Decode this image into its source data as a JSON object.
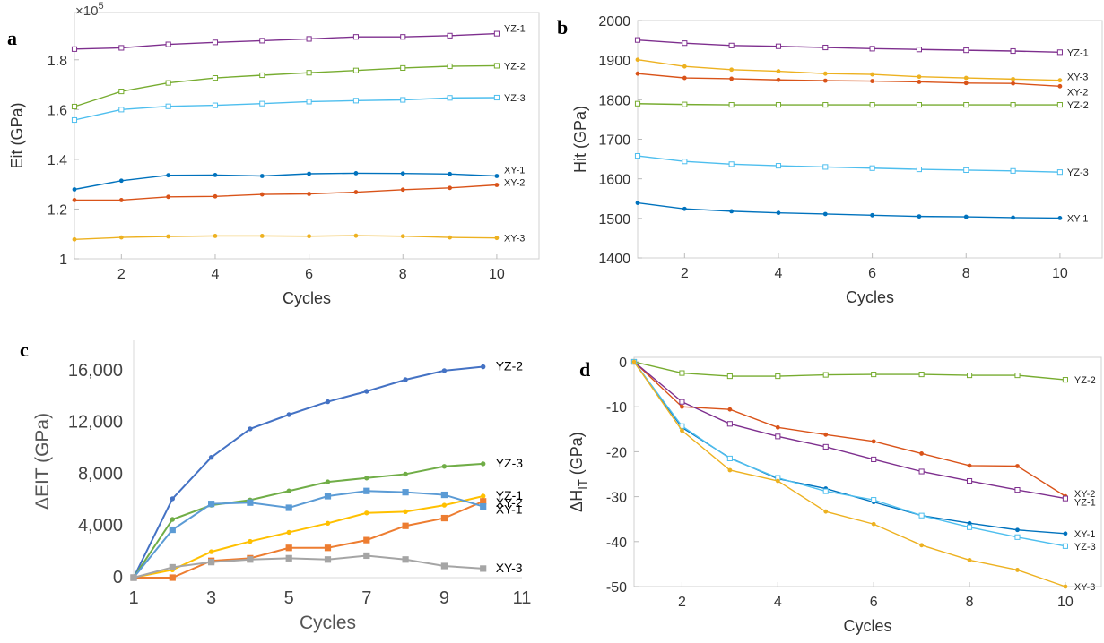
{
  "chart_data": [
    {
      "panel": "a",
      "type": "line",
      "xlabel": "Cycles",
      "ylabel": "Eit (GPa)",
      "exponent_label": "×10",
      "exponent_power": "5",
      "xlim": [
        1,
        10.9
      ],
      "ylim": [
        1.0,
        1.99
      ],
      "xticks": [
        "2",
        "4",
        "6",
        "8",
        "10"
      ],
      "yticks": [
        "1",
        "1.2",
        "1.4",
        "1.6",
        "1.8"
      ],
      "x": [
        1,
        2,
        3,
        4,
        5,
        6,
        7,
        8,
        9,
        10
      ],
      "series": [
        {
          "name": "YZ-1",
          "color": "#7e2f8e",
          "marker": "square-open",
          "values": [
            1.843,
            1.848,
            1.862,
            1.87,
            1.877,
            1.884,
            1.892,
            1.892,
            1.897,
            1.905
          ]
        },
        {
          "name": "YZ-2",
          "color": "#77ac30",
          "marker": "square-open",
          "values": [
            1.612,
            1.673,
            1.707,
            1.727,
            1.738,
            1.748,
            1.757,
            1.767,
            1.774,
            1.776
          ]
        },
        {
          "name": "YZ-3",
          "color": "#4dbeee",
          "marker": "square-open",
          "values": [
            1.558,
            1.6,
            1.613,
            1.617,
            1.624,
            1.632,
            1.636,
            1.639,
            1.647,
            1.648
          ]
        },
        {
          "name": "XY-1",
          "color": "#0072bd",
          "marker": "dot",
          "values": [
            1.279,
            1.314,
            1.336,
            1.337,
            1.333,
            1.342,
            1.344,
            1.343,
            1.341,
            1.333
          ]
        },
        {
          "name": "XY-2",
          "color": "#d95319",
          "marker": "dot",
          "values": [
            1.236,
            1.236,
            1.249,
            1.251,
            1.259,
            1.261,
            1.268,
            1.278,
            1.285,
            1.297
          ]
        },
        {
          "name": "XY-3",
          "color": "#edb120",
          "marker": "dot",
          "values": [
            1.078,
            1.086,
            1.09,
            1.092,
            1.092,
            1.091,
            1.093,
            1.091,
            1.086,
            1.084
          ]
        }
      ]
    },
    {
      "panel": "b",
      "type": "line",
      "xlabel": "Cycles",
      "ylabel": "Hit (GPa)",
      "xlim": [
        1,
        10.9
      ],
      "ylim": [
        1400,
        2000
      ],
      "xticks": [
        "2",
        "4",
        "6",
        "8",
        "10"
      ],
      "yticks": [
        "1400",
        "1500",
        "1600",
        "1700",
        "1800",
        "1900",
        "2000"
      ],
      "x": [
        1,
        2,
        3,
        4,
        5,
        6,
        7,
        8,
        9,
        10
      ],
      "series": [
        {
          "name": "YZ-1",
          "color": "#7e2f8e",
          "marker": "square-open",
          "values": [
            1951,
            1943,
            1937,
            1935,
            1932,
            1929,
            1927,
            1925,
            1923,
            1920
          ]
        },
        {
          "name": "XY-3",
          "color": "#edb120",
          "marker": "dot",
          "values": [
            1901,
            1884,
            1876,
            1872,
            1866,
            1864,
            1858,
            1855,
            1852,
            1849
          ]
        },
        {
          "name": "XY-2",
          "color": "#d95319",
          "marker": "dot",
          "values": [
            1866,
            1855,
            1853,
            1850,
            1848,
            1847,
            1845,
            1842,
            1841,
            1834
          ]
        },
        {
          "name": "YZ-2",
          "color": "#77ac30",
          "marker": "square-open",
          "values": [
            1790,
            1788,
            1787,
            1787,
            1787,
            1787,
            1787,
            1787,
            1787,
            1787
          ]
        },
        {
          "name": "YZ-3",
          "color": "#4dbeee",
          "marker": "square-open",
          "values": [
            1658,
            1644,
            1637,
            1633,
            1630,
            1627,
            1624,
            1622,
            1620,
            1617
          ]
        },
        {
          "name": "XY-1",
          "color": "#0072bd",
          "marker": "dot",
          "values": [
            1539,
            1524,
            1518,
            1514,
            1511,
            1508,
            1505,
            1504,
            1502,
            1501
          ]
        }
      ]
    },
    {
      "panel": "c",
      "type": "line",
      "xlabel": "Cycles",
      "ylabel": "ΔEIT (GPa)",
      "xlim": [
        1,
        11
      ],
      "ylim": [
        0,
        18000
      ],
      "xticks": [
        "1",
        "3",
        "5",
        "7",
        "9",
        "11"
      ],
      "yticks": [
        "0",
        "4,000",
        "8,000",
        "12,000",
        "16,000"
      ],
      "x": [
        1,
        2,
        3,
        4,
        5,
        6,
        7,
        8,
        9,
        10
      ],
      "series": [
        {
          "name": "YZ-2",
          "color": "#4472c4",
          "marker": "dot",
          "values": [
            0,
            6100,
            9300,
            11500,
            12600,
            13600,
            14400,
            15300,
            16000,
            16300
          ]
        },
        {
          "name": "YZ-3",
          "color": "#70ad47",
          "marker": "dot",
          "values": [
            0,
            4500,
            5600,
            6000,
            6700,
            7400,
            7700,
            8000,
            8600,
            8800
          ]
        },
        {
          "name": "YZ-1",
          "color": "#ffc000",
          "marker": "dot",
          "values": [
            0,
            600,
            2000,
            2800,
            3500,
            4200,
            5000,
            5100,
            5600,
            6300
          ]
        },
        {
          "name": "XY-2",
          "color": "#ed7d31",
          "marker": "square",
          "values": [
            0,
            0,
            1300,
            1500,
            2300,
            2300,
            2900,
            4000,
            4600,
            5900
          ]
        },
        {
          "name": "XY-1",
          "color": "#5b9bd5",
          "marker": "square",
          "values": [
            0,
            3700,
            5700,
            5800,
            5400,
            6300,
            6700,
            6600,
            6400,
            5500
          ]
        },
        {
          "name": "XY-3",
          "color": "#a5a5a5",
          "marker": "square",
          "values": [
            0,
            800,
            1200,
            1400,
            1500,
            1400,
            1700,
            1400,
            900,
            700
          ]
        }
      ]
    },
    {
      "panel": "d",
      "type": "line",
      "xlabel": "Cycles",
      "ylabel": "ΔH",
      "ylabel_sub": "IT",
      "ylabel_unit": " (GPa)",
      "xlim": [
        1,
        10.75
      ],
      "ylim": [
        -50,
        1
      ],
      "xticks": [
        "2",
        "4",
        "6",
        "8",
        "10"
      ],
      "yticks": [
        "0",
        "-10",
        "-20",
        "-30",
        "-40",
        "-50"
      ],
      "x": [
        1,
        2,
        3,
        4,
        5,
        6,
        7,
        8,
        9,
        10
      ],
      "series": [
        {
          "name": "YZ-2",
          "color": "#77ac30",
          "marker": "square-open",
          "values": [
            0,
            -2.5,
            -3.2,
            -3.2,
            -2.9,
            -2.8,
            -2.8,
            -3.0,
            -3.0,
            -4.0
          ]
        },
        {
          "name": "XY-2",
          "color": "#d95319",
          "marker": "dot",
          "values": [
            0,
            -10,
            -10.6,
            -14.6,
            -16.2,
            -17.7,
            -20.4,
            -23.1,
            -23.2,
            -29.9
          ]
        },
        {
          "name": "YZ-1",
          "color": "#7e2f8e",
          "marker": "square-open",
          "values": [
            0,
            -8.9,
            -13.8,
            -16.6,
            -18.9,
            -21.7,
            -24.4,
            -26.5,
            -28.5,
            -30.4
          ]
        },
        {
          "name": "XY-1",
          "color": "#0072bd",
          "marker": "dot",
          "values": [
            0,
            -14.6,
            -21.4,
            -26.0,
            -28.2,
            -31.2,
            -34.2,
            -35.9,
            -37.4,
            -38.2
          ]
        },
        {
          "name": "YZ-3",
          "color": "#4dbeee",
          "marker": "square-open",
          "values": [
            0,
            -14.3,
            -21.5,
            -25.8,
            -28.8,
            -30.7,
            -34.2,
            -36.8,
            -39.0,
            -41.0
          ]
        },
        {
          "name": "XY-3",
          "color": "#edb120",
          "marker": "dot",
          "values": [
            0,
            -15.3,
            -24.1,
            -26.5,
            -33.3,
            -36.1,
            -40.8,
            -44.1,
            -46.3,
            -50.0
          ]
        }
      ]
    }
  ]
}
